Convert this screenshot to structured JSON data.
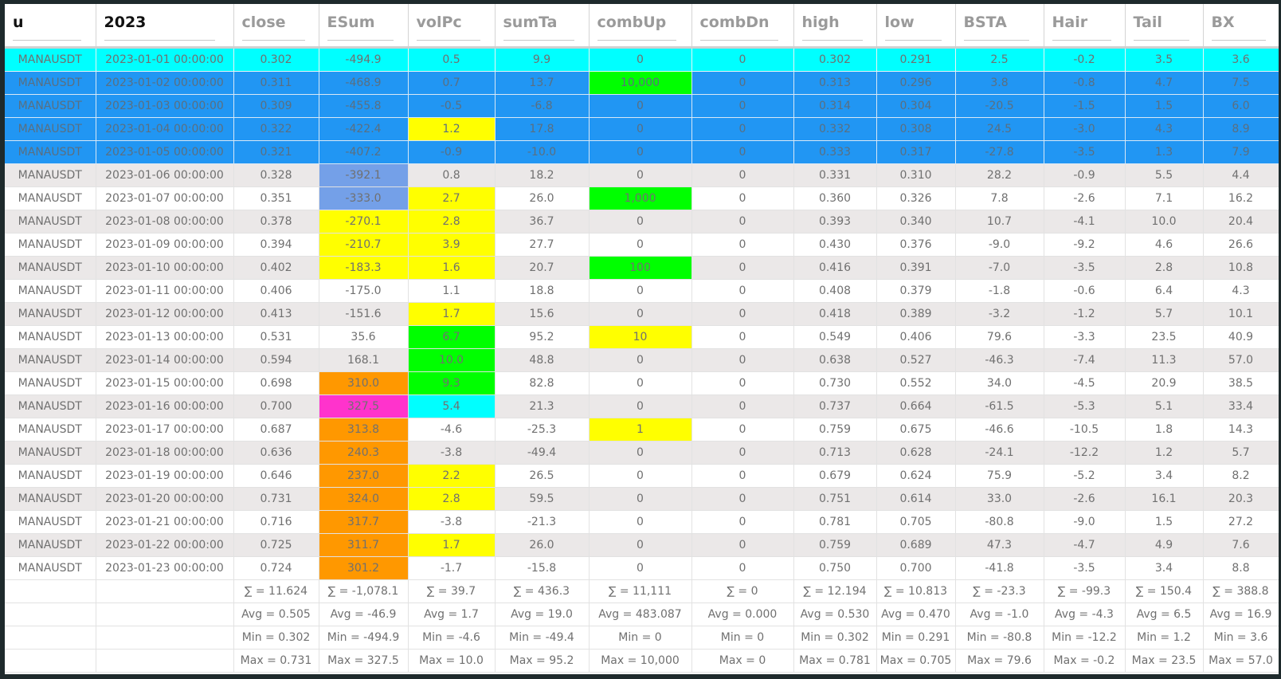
{
  "columns": [
    "u",
    "2023",
    "close",
    "ESum",
    "volPc",
    "sumTa",
    "combUp",
    "combDn",
    "high",
    "low",
    "BSTA",
    "Hair",
    "Tail",
    "BX"
  ],
  "colors": {
    "cyan": "#00ffff",
    "selected_blue": "#2196f3",
    "green": "#00ff00",
    "yellow": "#ffff00",
    "orange": "#ff9800",
    "magenta": "#ff33cc",
    "light_blue": "#74a0e8",
    "stripe": "#ebe8e8"
  },
  "rows": [
    {
      "cells": [
        "MANAUSDT",
        "2023-01-01 00:00:00",
        "0.302",
        "-494.9",
        "0.5",
        "9.9",
        "0",
        "0",
        "0.302",
        "0.291",
        "2.5",
        "-0.2",
        "3.5",
        "3.6"
      ],
      "row_style": "sel-cyan",
      "cell_styles": {}
    },
    {
      "cells": [
        "MANAUSDT",
        "2023-01-02 00:00:00",
        "0.311",
        "-468.9",
        "0.7",
        "13.7",
        "10,000",
        "0",
        "0.313",
        "0.296",
        "3.8",
        "-0.8",
        "4.7",
        "7.5"
      ],
      "row_style": "sel-blue",
      "cell_styles": {
        "6": "bg-green"
      }
    },
    {
      "cells": [
        "MANAUSDT",
        "2023-01-03 00:00:00",
        "0.309",
        "-455.8",
        "-0.5",
        "-6.8",
        "0",
        "0",
        "0.314",
        "0.304",
        "-20.5",
        "-1.5",
        "1.5",
        "6.0"
      ],
      "row_style": "sel-blue",
      "cell_styles": {}
    },
    {
      "cells": [
        "MANAUSDT",
        "2023-01-04 00:00:00",
        "0.322",
        "-422.4",
        "1.2",
        "17.8",
        "0",
        "0",
        "0.332",
        "0.308",
        "24.5",
        "-3.0",
        "4.3",
        "8.9"
      ],
      "row_style": "sel-blue",
      "cell_styles": {
        "4": "bg-yellow"
      }
    },
    {
      "cells": [
        "MANAUSDT",
        "2023-01-05 00:00:00",
        "0.321",
        "-407.2",
        "-0.9",
        "-10.0",
        "0",
        "0",
        "0.333",
        "0.317",
        "-27.8",
        "-3.5",
        "1.3",
        "7.9"
      ],
      "row_style": "sel-blue",
      "cell_styles": {}
    },
    {
      "cells": [
        "MANAUSDT",
        "2023-01-06 00:00:00",
        "0.328",
        "-392.1",
        "0.8",
        "18.2",
        "0",
        "0",
        "0.331",
        "0.310",
        "28.2",
        "-0.9",
        "5.5",
        "4.4"
      ],
      "row_style": "even",
      "cell_styles": {
        "3": "bg-lblue"
      }
    },
    {
      "cells": [
        "MANAUSDT",
        "2023-01-07 00:00:00",
        "0.351",
        "-333.0",
        "2.7",
        "26.0",
        "1,000",
        "0",
        "0.360",
        "0.326",
        "7.8",
        "-2.6",
        "7.1",
        "16.2"
      ],
      "row_style": "odd",
      "cell_styles": {
        "3": "bg-lblue",
        "4": "bg-yellow",
        "6": "bg-green"
      }
    },
    {
      "cells": [
        "MANAUSDT",
        "2023-01-08 00:00:00",
        "0.378",
        "-270.1",
        "2.8",
        "36.7",
        "0",
        "0",
        "0.393",
        "0.340",
        "10.7",
        "-4.1",
        "10.0",
        "20.4"
      ],
      "row_style": "even",
      "cell_styles": {
        "3": "bg-yellow",
        "4": "bg-yellow"
      }
    },
    {
      "cells": [
        "MANAUSDT",
        "2023-01-09 00:00:00",
        "0.394",
        "-210.7",
        "3.9",
        "27.7",
        "0",
        "0",
        "0.430",
        "0.376",
        "-9.0",
        "-9.2",
        "4.6",
        "26.6"
      ],
      "row_style": "odd",
      "cell_styles": {
        "3": "bg-yellow",
        "4": "bg-yellow"
      }
    },
    {
      "cells": [
        "MANAUSDT",
        "2023-01-10 00:00:00",
        "0.402",
        "-183.3",
        "1.6",
        "20.7",
        "100",
        "0",
        "0.416",
        "0.391",
        "-7.0",
        "-3.5",
        "2.8",
        "10.8"
      ],
      "row_style": "even",
      "cell_styles": {
        "3": "bg-yellow",
        "4": "bg-yellow",
        "6": "bg-green"
      }
    },
    {
      "cells": [
        "MANAUSDT",
        "2023-01-11 00:00:00",
        "0.406",
        "-175.0",
        "1.1",
        "18.8",
        "0",
        "0",
        "0.408",
        "0.379",
        "-1.8",
        "-0.6",
        "6.4",
        "4.3"
      ],
      "row_style": "odd",
      "cell_styles": {}
    },
    {
      "cells": [
        "MANAUSDT",
        "2023-01-12 00:00:00",
        "0.413",
        "-151.6",
        "1.7",
        "15.6",
        "0",
        "0",
        "0.418",
        "0.389",
        "-3.2",
        "-1.2",
        "5.7",
        "10.1"
      ],
      "row_style": "even",
      "cell_styles": {
        "4": "bg-yellow"
      }
    },
    {
      "cells": [
        "MANAUSDT",
        "2023-01-13 00:00:00",
        "0.531",
        "35.6",
        "6.7",
        "95.2",
        "10",
        "0",
        "0.549",
        "0.406",
        "79.6",
        "-3.3",
        "23.5",
        "40.9"
      ],
      "row_style": "odd",
      "cell_styles": {
        "4": "bg-green",
        "6": "bg-yellow"
      }
    },
    {
      "cells": [
        "MANAUSDT",
        "2023-01-14 00:00:00",
        "0.594",
        "168.1",
        "10.0",
        "48.8",
        "0",
        "0",
        "0.638",
        "0.527",
        "-46.3",
        "-7.4",
        "11.3",
        "57.0"
      ],
      "row_style": "even",
      "cell_styles": {
        "4": "bg-green"
      }
    },
    {
      "cells": [
        "MANAUSDT",
        "2023-01-15 00:00:00",
        "0.698",
        "310.0",
        "9.3",
        "82.8",
        "0",
        "0",
        "0.730",
        "0.552",
        "34.0",
        "-4.5",
        "20.9",
        "38.5"
      ],
      "row_style": "odd",
      "cell_styles": {
        "3": "bg-orange",
        "4": "bg-green"
      }
    },
    {
      "cells": [
        "MANAUSDT",
        "2023-01-16 00:00:00",
        "0.700",
        "327.5",
        "5.4",
        "21.3",
        "0",
        "0",
        "0.737",
        "0.664",
        "-61.5",
        "-5.3",
        "5.1",
        "33.4"
      ],
      "row_style": "even",
      "cell_styles": {
        "3": "bg-magenta",
        "4": "bg-cyan"
      }
    },
    {
      "cells": [
        "MANAUSDT",
        "2023-01-17 00:00:00",
        "0.687",
        "313.8",
        "-4.6",
        "-25.3",
        "1",
        "0",
        "0.759",
        "0.675",
        "-46.6",
        "-10.5",
        "1.8",
        "14.3"
      ],
      "row_style": "odd",
      "cell_styles": {
        "3": "bg-orange",
        "6": "bg-yellow"
      }
    },
    {
      "cells": [
        "MANAUSDT",
        "2023-01-18 00:00:00",
        "0.636",
        "240.3",
        "-3.8",
        "-49.4",
        "0",
        "0",
        "0.713",
        "0.628",
        "-24.1",
        "-12.2",
        "1.2",
        "5.7"
      ],
      "row_style": "even",
      "cell_styles": {
        "3": "bg-orange"
      }
    },
    {
      "cells": [
        "MANAUSDT",
        "2023-01-19 00:00:00",
        "0.646",
        "237.0",
        "2.2",
        "26.5",
        "0",
        "0",
        "0.679",
        "0.624",
        "75.9",
        "-5.2",
        "3.4",
        "8.2"
      ],
      "row_style": "odd",
      "cell_styles": {
        "3": "bg-orange",
        "4": "bg-yellow"
      }
    },
    {
      "cells": [
        "MANAUSDT",
        "2023-01-20 00:00:00",
        "0.731",
        "324.0",
        "2.8",
        "59.5",
        "0",
        "0",
        "0.751",
        "0.614",
        "33.0",
        "-2.6",
        "16.1",
        "20.3"
      ],
      "row_style": "even",
      "cell_styles": {
        "3": "bg-orange",
        "4": "bg-yellow"
      }
    },
    {
      "cells": [
        "MANAUSDT",
        "2023-01-21 00:00:00",
        "0.716",
        "317.7",
        "-3.8",
        "-21.3",
        "0",
        "0",
        "0.781",
        "0.705",
        "-80.8",
        "-9.0",
        "1.5",
        "27.2"
      ],
      "row_style": "odd",
      "cell_styles": {
        "3": "bg-orange"
      }
    },
    {
      "cells": [
        "MANAUSDT",
        "2023-01-22 00:00:00",
        "0.725",
        "311.7",
        "1.7",
        "26.0",
        "0",
        "0",
        "0.759",
        "0.689",
        "47.3",
        "-4.7",
        "4.9",
        "7.6"
      ],
      "row_style": "even",
      "cell_styles": {
        "3": "bg-orange",
        "4": "bg-yellow"
      }
    },
    {
      "cells": [
        "MANAUSDT",
        "2023-01-23 00:00:00",
        "0.724",
        "301.2",
        "-1.7",
        "-15.8",
        "0",
        "0",
        "0.750",
        "0.700",
        "-41.8",
        "-3.5",
        "3.4",
        "8.8"
      ],
      "row_style": "odd",
      "cell_styles": {
        "3": "bg-orange"
      }
    }
  ],
  "summary": [
    {
      "label": "sum",
      "cells": [
        "",
        "",
        "∑ = 11.624",
        "∑ = -1,078.1",
        "∑ = 39.7",
        "∑ = 436.3",
        "∑ = 11,111",
        "∑ = 0",
        "∑ = 12.194",
        "∑ = 10.813",
        "∑ = -23.3",
        "∑ = -99.3",
        "∑ = 150.4",
        "∑ = 388.8"
      ]
    },
    {
      "label": "avg",
      "cells": [
        "",
        "",
        "Avg = 0.505",
        "Avg = -46.9",
        "Avg = 1.7",
        "Avg = 19.0",
        "Avg = 483.087",
        "Avg = 0.000",
        "Avg = 0.530",
        "Avg = 0.470",
        "Avg = -1.0",
        "Avg = -4.3",
        "Avg = 6.5",
        "Avg = 16.9"
      ]
    },
    {
      "label": "min",
      "cells": [
        "",
        "",
        "Min = 0.302",
        "Min = -494.9",
        "Min = -4.6",
        "Min = -49.4",
        "Min = 0",
        "Min = 0",
        "Min = 0.302",
        "Min = 0.291",
        "Min = -80.8",
        "Min = -12.2",
        "Min = 1.2",
        "Min = 3.6"
      ]
    },
    {
      "label": "max",
      "cells": [
        "",
        "",
        "Max = 0.731",
        "Max = 327.5",
        "Max = 10.0",
        "Max = 95.2",
        "Max = 10,000",
        "Max = 0",
        "Max = 0.781",
        "Max = 0.705",
        "Max = 79.6",
        "Max = -0.2",
        "Max = 23.5",
        "Max = 57.0"
      ]
    }
  ]
}
